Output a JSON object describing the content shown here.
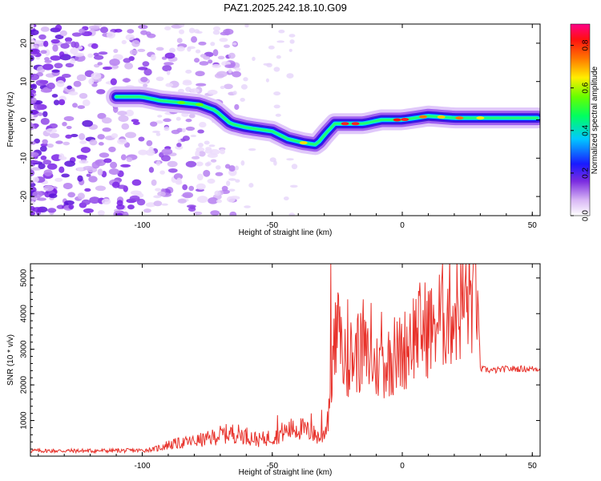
{
  "title": "PAZ1.2025.242.18.10.G09",
  "chart_data": [
    {
      "type": "heatmap",
      "xlabel": "Height of straight line (km)",
      "ylabel": "Frequency (Hz)",
      "xlim": [
        -143,
        53
      ],
      "ylim": [
        -25,
        25
      ],
      "x_ticks": [
        -100,
        -50,
        0,
        50
      ],
      "y_ticks": [
        20,
        10,
        0,
        -10,
        -20
      ],
      "colorbar": {
        "label": "Normalized spectral amplitude",
        "range": [
          0.0,
          0.9
        ],
        "ticks": [
          0.0,
          0.2,
          0.4,
          0.6,
          0.8
        ]
      },
      "ridge": {
        "x": [
          -110,
          -100,
          -93,
          -85,
          -78,
          -72,
          -66,
          -60,
          -55,
          -50,
          -44,
          -38,
          -33,
          -30,
          -26,
          -22,
          -15,
          -8,
          0,
          10,
          20,
          30,
          40,
          53
        ],
        "freq": [
          6,
          6,
          5,
          4.5,
          4,
          2.5,
          -1,
          -2,
          -2.5,
          -3,
          -5,
          -6,
          -6.5,
          -4,
          -1,
          -1,
          -1,
          0,
          0,
          1,
          0.5,
          0.5,
          0.5,
          0.5
        ]
      }
    },
    {
      "type": "line",
      "xlabel": "Height of straight line (km)",
      "ylabel": "SNR (10 * v/v)",
      "xlim": [
        -143,
        53
      ],
      "ylim": [
        0,
        5400
      ],
      "x_ticks": [
        -100,
        -50,
        0,
        50
      ],
      "y_ticks": [
        1000,
        2000,
        3000,
        4000,
        5000
      ],
      "series": [
        {
          "name": "SNR",
          "color": "#e8332c",
          "x": [
            -143,
            -120,
            -100,
            -95,
            -90,
            -85,
            -80,
            -75,
            -70,
            -65,
            -60,
            -55,
            -50,
            -45,
            -40,
            -35,
            -31,
            -29,
            -27,
            -25,
            -22,
            -20,
            -15,
            -10,
            -5,
            0,
            5,
            10,
            15,
            20,
            25,
            28,
            29,
            30,
            35,
            40,
            45,
            50,
            53
          ],
          "values": [
            150,
            150,
            160,
            200,
            320,
            370,
            420,
            480,
            600,
            650,
            580,
            450,
            550,
            700,
            800,
            650,
            500,
            900,
            2500,
            3500,
            2600,
            2800,
            2900,
            2500,
            2700,
            2900,
            3500,
            3600,
            3900,
            4100,
            4400,
            4600,
            4700,
            2450,
            2400,
            2450,
            2450,
            2450,
            2450
          ]
        }
      ]
    }
  ]
}
